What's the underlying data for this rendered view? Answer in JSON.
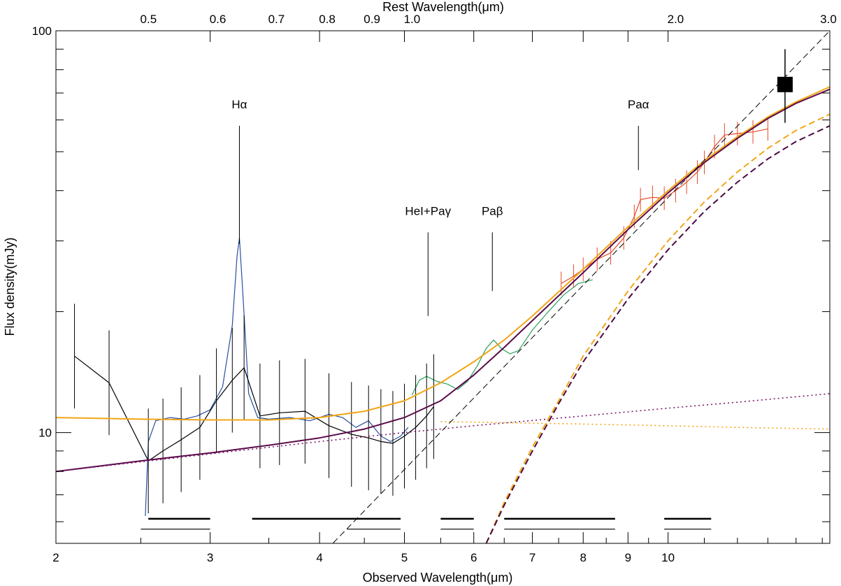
{
  "chart_data": {
    "type": "line",
    "title": "",
    "xlabel": "Observed Wavelength(μm)",
    "x2label": "Rest Wavelength(μm)",
    "ylabel": "Flux density(mJy)",
    "x_scale": "log",
    "y_scale": "log",
    "xlim": [
      2.0,
      15.3
    ],
    "ylim": [
      5.3,
      100
    ],
    "x2lim": [
      0.392,
      3.0
    ],
    "x_ticks": [
      {
        "value": 2,
        "label": "2"
      },
      {
        "value": 3,
        "label": "3"
      },
      {
        "value": 4,
        "label": "4"
      },
      {
        "value": 5,
        "label": "5"
      },
      {
        "value": 6,
        "label": "6"
      },
      {
        "value": 7,
        "label": "7"
      },
      {
        "value": 8,
        "label": "8"
      },
      {
        "value": 9,
        "label": "9"
      },
      {
        "value": 10,
        "label": "10"
      }
    ],
    "x2_ticks": [
      {
        "value": 0.5,
        "label": "0.5"
      },
      {
        "value": 0.6,
        "label": "0.6"
      },
      {
        "value": 0.7,
        "label": "0.7"
      },
      {
        "value": 0.8,
        "label": "0.8"
      },
      {
        "value": 0.9,
        "label": "0.9"
      },
      {
        "value": 1.0,
        "label": "1.0"
      },
      {
        "value": 2.0,
        "label": "2.0"
      },
      {
        "value": 3.0,
        "label": "3.0"
      }
    ],
    "y_ticks": [
      {
        "value": 10,
        "label": "10"
      },
      {
        "value": 100,
        "label": "100"
      }
    ],
    "line_annotations": [
      {
        "label": "Hα",
        "x": 3.24,
        "y_low": 29.5,
        "y_high": 58
      },
      {
        "label": "HeI+Paγ",
        "x": 5.32,
        "y_low": 19.5,
        "y_high": 31.5
      },
      {
        "label": "Paβ",
        "x": 6.3,
        "y_low": 22.5,
        "y_high": 31.5
      },
      {
        "label": "Paα",
        "x": 9.25,
        "y_low": 45,
        "y_high": 58
      }
    ],
    "series": [
      {
        "style": "blue spectrum",
        "color": "#2850a0",
        "x": [
          2.53,
          2.55,
          2.6,
          2.7,
          2.8,
          2.9,
          3.0,
          3.1,
          3.18,
          3.22,
          3.24,
          3.27,
          3.32,
          3.4,
          3.5,
          3.7,
          3.9,
          4.1,
          4.25,
          4.4,
          4.55,
          4.7,
          4.82,
          4.95,
          5.05
        ],
        "y": [
          6.2,
          9.5,
          10.7,
          10.9,
          10.8,
          11.0,
          11.4,
          13.0,
          18.5,
          27.5,
          30.5,
          22.0,
          12.5,
          10.9,
          10.8,
          10.9,
          10.7,
          11.1,
          10.9,
          10.3,
          10.7,
          9.8,
          9.5,
          9.8,
          10.3
        ]
      },
      {
        "style": "green spectrum",
        "color": "#2aa05a",
        "x": [
          5.1,
          5.2,
          5.3,
          5.45,
          5.6,
          5.75,
          5.9,
          6.05,
          6.2,
          6.32,
          6.45,
          6.6,
          6.75,
          7.0,
          7.3,
          7.6,
          7.9,
          8.2
        ],
        "y": [
          12.4,
          13.5,
          13.8,
          13.4,
          13.2,
          12.8,
          13.4,
          14.6,
          16.2,
          17.0,
          16.2,
          15.7,
          16.0,
          18.0,
          20.0,
          22.0,
          23.5,
          24.0
        ]
      },
      {
        "style": "red spectrum with error bars",
        "color": "#e84a2a",
        "x": [
          7.55,
          7.8,
          8.0,
          8.3,
          8.6,
          8.9,
          9.15,
          9.3,
          9.6,
          9.9,
          10.2,
          10.5,
          10.8,
          11.0,
          11.3,
          11.6,
          12.0,
          12.5,
          13.0
        ],
        "y": [
          23.5,
          24.5,
          25.5,
          27.0,
          28.0,
          30.5,
          34.5,
          38.0,
          38.5,
          38.3,
          40.0,
          42.0,
          44.5,
          47.0,
          51.5,
          55.0,
          55.5,
          56.0,
          57.0
        ]
      },
      {
        "style": "black photometric spectrum with error bars",
        "color": "#000000",
        "x": [
          2.1,
          2.3,
          2.55,
          2.65,
          2.78,
          2.92,
          3.05,
          3.18,
          3.28,
          3.42,
          3.6,
          3.85,
          4.1,
          4.35,
          4.55,
          4.7,
          4.85,
          5.0,
          5.15,
          5.3,
          5.4
        ],
        "y": [
          15.5,
          13.3,
          8.5,
          9.0,
          9.6,
          10.3,
          12.0,
          13.5,
          14.5,
          11.0,
          11.2,
          11.3,
          10.4,
          9.9,
          9.7,
          9.5,
          9.4,
          9.8,
          10.3,
          11.0,
          11.6
        ]
      },
      {
        "style": "orange solid model",
        "color": "#f2a516",
        "x": [
          2.0,
          2.5,
          3.0,
          3.5,
          4.0,
          4.5,
          5.0,
          5.5,
          6.0,
          6.5,
          7.0,
          8.0,
          9.0,
          10.0,
          11.0,
          12.0,
          13.0,
          14.0,
          15.3
        ],
        "y": [
          10.9,
          10.8,
          10.75,
          10.75,
          10.9,
          11.3,
          12.0,
          13.3,
          15.0,
          17.0,
          19.5,
          25.5,
          32.5,
          40.0,
          47.5,
          54.5,
          61.0,
          66.5,
          72.5
        ]
      },
      {
        "style": "purple solid model",
        "color": "#5a0a4a",
        "x": [
          2.0,
          2.5,
          3.0,
          3.5,
          4.0,
          4.5,
          5.0,
          5.5,
          6.0,
          6.5,
          7.0,
          8.0,
          9.0,
          10.0,
          11.0,
          12.0,
          13.0,
          14.0,
          15.3
        ],
        "y": [
          8.0,
          8.5,
          8.9,
          9.3,
          9.7,
          10.2,
          10.9,
          12.0,
          13.9,
          16.3,
          19.0,
          25.0,
          32.0,
          39.5,
          47.0,
          54.0,
          60.5,
          66.0,
          71.5
        ]
      },
      {
        "style": "orange dotted model",
        "color": "#f2a516",
        "x": [
          5.5,
          8.0,
          10.0,
          12.0,
          15.3
        ],
        "y": [
          10.65,
          10.5,
          10.4,
          10.3,
          10.2
        ]
      },
      {
        "style": "purple dotted model",
        "color": "#7a1a6a",
        "x": [
          2.0,
          3.0,
          4.0,
          5.0,
          6.0,
          8.0,
          10.0,
          12.0,
          15.3
        ],
        "y": [
          8.0,
          8.85,
          9.5,
          10.0,
          10.4,
          11.0,
          11.5,
          11.9,
          12.5
        ]
      },
      {
        "style": "orange dashed model",
        "color": "#f2a516",
        "x": [
          6.2,
          6.5,
          7.0,
          7.5,
          8.0,
          9.0,
          10.0,
          11.0,
          12.0,
          13.0,
          14.0,
          15.3
        ],
        "y": [
          5.3,
          6.7,
          9.2,
          12.0,
          15.5,
          22.5,
          30.0,
          37.5,
          44.5,
          51.0,
          56.5,
          62.0
        ]
      },
      {
        "style": "dark purple dashed model",
        "color": "#4a0a40",
        "x": [
          6.2,
          6.5,
          7.0,
          7.5,
          8.0,
          9.0,
          10.0,
          11.0,
          12.0,
          13.0,
          14.0,
          15.3
        ],
        "y": [
          5.3,
          6.6,
          9.0,
          11.8,
          15.0,
          21.5,
          28.5,
          35.5,
          42.0,
          48.0,
          53.0,
          58.0
        ]
      },
      {
        "style": "black dashed power law",
        "color": "#000000",
        "x": [
          4.0,
          15.3
        ],
        "y": [
          4.9,
          100.0
        ]
      }
    ],
    "square_point": {
      "x": 13.6,
      "y": 73.5,
      "y_err": [
        59,
        90
      ]
    },
    "filter_bands": [
      {
        "row": "thick",
        "y": 6.1,
        "ranges": [
          [
            2.55,
            3.0
          ],
          [
            3.35,
            4.95
          ],
          [
            5.5,
            6.0
          ],
          [
            6.5,
            8.7
          ],
          [
            9.9,
            11.2
          ]
        ]
      },
      {
        "row": "thin",
        "y": 5.75,
        "ranges": [
          [
            2.5,
            3.0
          ],
          [
            4.3,
            4.95
          ],
          [
            5.5,
            6.0
          ],
          [
            6.5,
            8.7
          ],
          [
            9.9,
            11.2
          ]
        ]
      }
    ]
  }
}
